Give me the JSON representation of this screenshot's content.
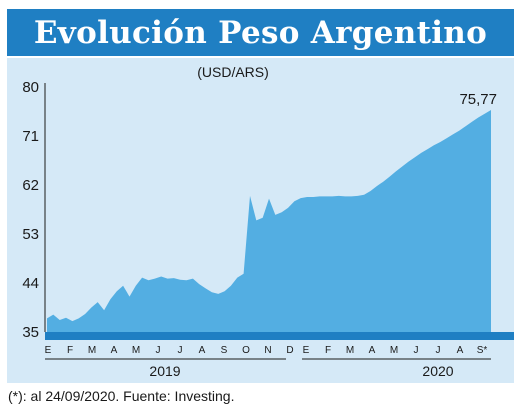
{
  "title": "Evolución Peso Argentino",
  "footnote": "(*): al 24/09/2020. Fuente: Investing.",
  "colors": {
    "title_bg": "#1f7fc3",
    "panel_bg": "#d5e9f7",
    "area_fill": "#53aee2",
    "axis_band": "#1f7fc3",
    "text": "#1a1a1a"
  },
  "chart_data": {
    "type": "area",
    "subtitle": "(USD/ARS)",
    "ylim": [
      35,
      80
    ],
    "yticks": [
      "80",
      "71",
      "62",
      "53",
      "44",
      "35"
    ],
    "ytick_values": [
      80,
      71,
      62,
      53,
      44,
      35
    ],
    "month_labels_2019": [
      "E",
      "F",
      "M",
      "A",
      "M",
      "J",
      "J",
      "A",
      "S",
      "O",
      "N",
      "D"
    ],
    "month_labels_2020": [
      "E",
      "F",
      "M",
      "A",
      "M",
      "J",
      "J",
      "A",
      "S*"
    ],
    "year_labels": [
      "2019",
      "2020"
    ],
    "last_value_label": "75,77",
    "series": [
      {
        "values": [
          37.5,
          38.2,
          37.2,
          37.6,
          37.0,
          37.5,
          38.3,
          39.5,
          40.5,
          39.0,
          41.0,
          42.5,
          43.5,
          41.5,
          43.5,
          45.0,
          44.5,
          44.8,
          45.2,
          44.8,
          44.9,
          44.6,
          44.5,
          44.8,
          43.8,
          43.0,
          42.3,
          42.0,
          42.5,
          43.5,
          45.0,
          45.7,
          60.0,
          55.5,
          56.0,
          59.5,
          56.5,
          57.0,
          57.8,
          59.0,
          59.6,
          59.8,
          59.8,
          59.9,
          59.9,
          59.9,
          60.0,
          59.9,
          59.9,
          60.0,
          60.2,
          60.9,
          61.8,
          62.6,
          63.5,
          64.5,
          65.4,
          66.3,
          67.1,
          67.9,
          68.6,
          69.3,
          69.9,
          70.6,
          71.3,
          72.0,
          72.8,
          73.6,
          74.4,
          75.1,
          75.77
        ]
      }
    ]
  }
}
